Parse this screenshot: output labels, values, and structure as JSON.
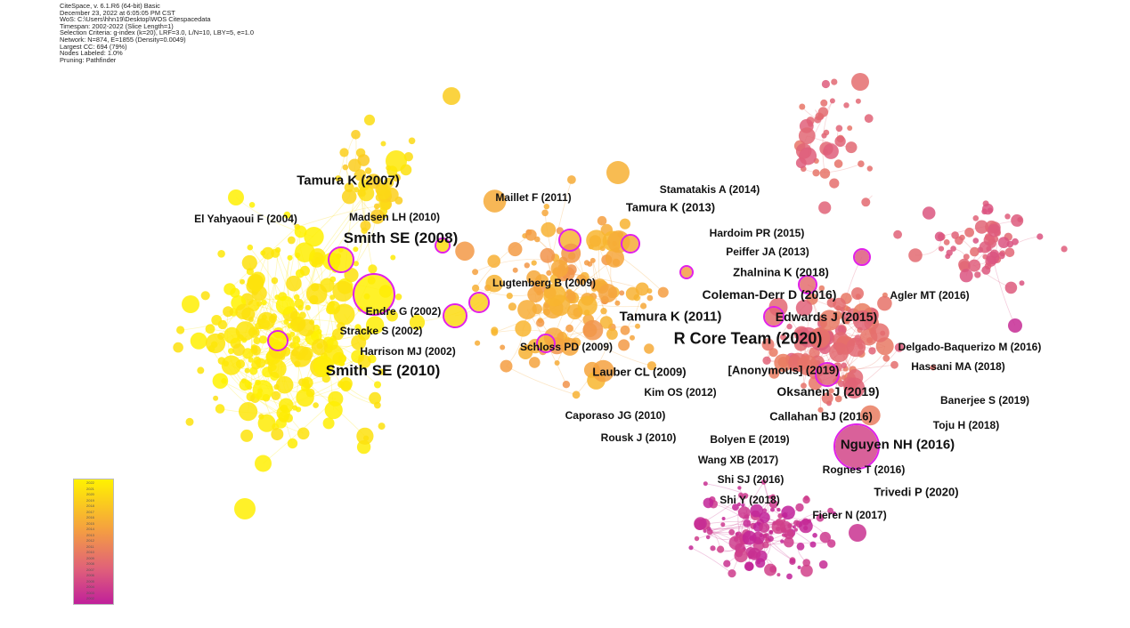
{
  "info_lines": [
    "CiteSpace, v. 6.1.R6 (64-bit) Basic",
    "December 23, 2022 at 6:05:05 PM CST",
    "WoS: C:\\Users\\hhn19\\Desktop\\WOS Citespacedata",
    "Timespan: 2002-2022 (Slice Length=1)",
    "Selection Criteria: g-index (k=20), LRF=3.0, L/N=10, LBY=5, e=1.0",
    "Network: N=874, E=1855 (Density=0.0049)",
    "Largest CC: 694 (79%)",
    "Nodes Labeled: 1.0%",
    "Pruning: Pathfinder"
  ],
  "colors": {
    "year_start": "#fff200",
    "year_mid": "#f5a040",
    "year_late": "#e0607a",
    "year_end": "#c0209a",
    "burst_ring": "#e020e8"
  },
  "legend_years": [
    "2002",
    "2003",
    "2004",
    "2005",
    "2006",
    "2007",
    "2008",
    "2009",
    "2010",
    "2011",
    "2012",
    "2013",
    "2014",
    "2015",
    "2016",
    "2017",
    "2018",
    "2019",
    "2020",
    "2021",
    "2022"
  ],
  "labels": [
    {
      "text": "Tamura K (2007)",
      "size": 15
    },
    {
      "text": "El Yahyaoui F (2004)",
      "size": 12
    },
    {
      "text": "Madsen LH (2010)",
      "size": 12
    },
    {
      "text": "Smith SE (2008)",
      "size": 17
    },
    {
      "text": "Maillet F (2011)",
      "size": 12
    },
    {
      "text": "Stamatakis A (2014)",
      "size": 12
    },
    {
      "text": "Tamura K (2013)",
      "size": 13
    },
    {
      "text": "Hardoim PR (2015)",
      "size": 12
    },
    {
      "text": "Peiffer JA (2013)",
      "size": 12
    },
    {
      "text": "Zhalnina K (2018)",
      "size": 13
    },
    {
      "text": "Lugtenberg B (2009)",
      "size": 12
    },
    {
      "text": "Coleman-Derr D (2016)",
      "size": 14
    },
    {
      "text": "Agler MT (2016)",
      "size": 12
    },
    {
      "text": "Endre G (2002)",
      "size": 12
    },
    {
      "text": "Tamura K (2011)",
      "size": 15
    },
    {
      "text": "Edwards J (2015)",
      "size": 14
    },
    {
      "text": "Stracke S (2002)",
      "size": 12
    },
    {
      "text": "R Core Team (2020)",
      "size": 18
    },
    {
      "text": "Schloss PD (2009)",
      "size": 12
    },
    {
      "text": "Delgado-Baquerizo M (2016)",
      "size": 12
    },
    {
      "text": "Harrison MJ (2002)",
      "size": 12
    },
    {
      "text": "Smith SE (2010)",
      "size": 17
    },
    {
      "text": "Lauber CL (2009)",
      "size": 13
    },
    {
      "text": "[Anonymous] (2019)",
      "size": 13
    },
    {
      "text": "Hassani MA (2018)",
      "size": 12
    },
    {
      "text": "Kim OS (2012)",
      "size": 12
    },
    {
      "text": "Oksanen J (2019)",
      "size": 14
    },
    {
      "text": "Banerjee S (2019)",
      "size": 12
    },
    {
      "text": "Caporaso JG (2010)",
      "size": 12
    },
    {
      "text": "Callahan BJ (2016)",
      "size": 13
    },
    {
      "text": "Toju H (2018)",
      "size": 12
    },
    {
      "text": "Rousk J (2010)",
      "size": 12
    },
    {
      "text": "Bolyen E (2019)",
      "size": 12
    },
    {
      "text": "Nguyen NH (2016)",
      "size": 15
    },
    {
      "text": "Wang XB (2017)",
      "size": 12
    },
    {
      "text": "Rognes T (2016)",
      "size": 12
    },
    {
      "text": "Shi SJ (2016)",
      "size": 12
    },
    {
      "text": "Trivedi P (2020)",
      "size": 13
    },
    {
      "text": "Shi Y (2018)",
      "size": 12
    },
    {
      "text": "Fierer N (2017)",
      "size": 12
    }
  ]
}
